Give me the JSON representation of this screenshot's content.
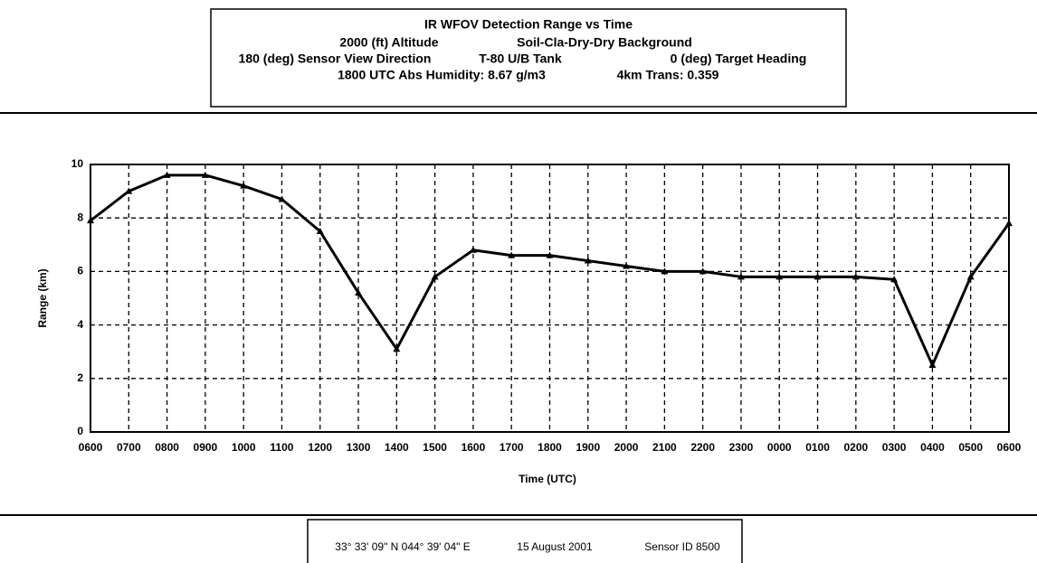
{
  "chart_data": {
    "type": "line",
    "title": "IR WFOV Detection Range vs Time",
    "header_lines": [
      [
        "2000 (ft) Altitude",
        "Soil-Cla-Dry-Dry Background"
      ],
      [
        "180 (deg) Sensor View Direction",
        "T-80 U/B Tank",
        "0 (deg) Target Heading"
      ],
      [
        "1800 UTC Abs Humidity: 8.67 g/m3",
        "4km Trans: 0.359"
      ]
    ],
    "footer": [
      "33° 33' 09\" N  044° 39' 04\" E",
      "15 August 2001",
      "Sensor ID 8500"
    ],
    "xlabel": "Time (UTC)",
    "ylabel": "Range (km)",
    "categories": [
      "0600",
      "0700",
      "0800",
      "0900",
      "1000",
      "1100",
      "1200",
      "1300",
      "1400",
      "1500",
      "1600",
      "1700",
      "1800",
      "1900",
      "2000",
      "2100",
      "2200",
      "2300",
      "0000",
      "0100",
      "0200",
      "0300",
      "0400",
      "0500",
      "0600"
    ],
    "series": [
      {
        "color": "#000000",
        "values": [
          7.9,
          9.0,
          9.6,
          9.6,
          9.2,
          8.7,
          7.5,
          5.2,
          3.1,
          5.8,
          6.8,
          6.6,
          6.6,
          6.4,
          6.2,
          6.0,
          6.0,
          5.8,
          5.8,
          5.8,
          5.8,
          5.7,
          2.5,
          5.8,
          7.8
        ]
      }
    ],
    "ylim": [
      0,
      10
    ],
    "yticks": [
      0,
      2,
      4,
      6,
      8,
      10
    ],
    "grid": true
  }
}
